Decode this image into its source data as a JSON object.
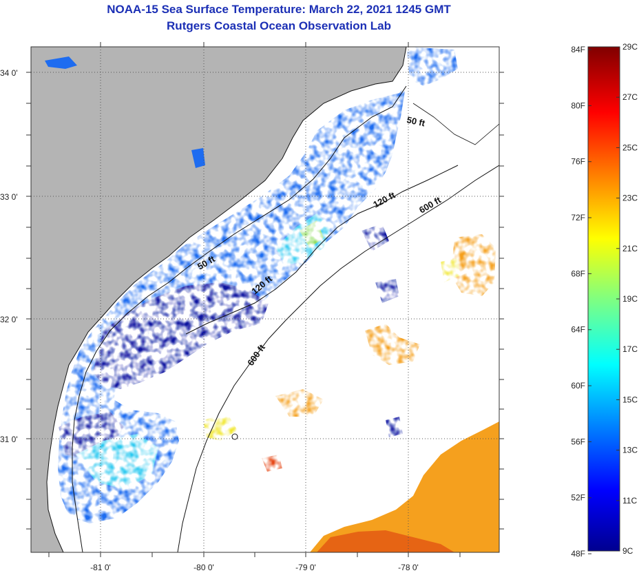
{
  "header": {
    "title": "NOAA-15 Sea Surface Temperature:  March 22, 2021 1245 GMT",
    "subtitle": "Rutgers Coastal Ocean Observation Lab"
  },
  "map": {
    "lon_ticks": [
      "-81 0'",
      "-80 0'",
      "-79 0'",
      "-78 0'"
    ],
    "lat_ticks": [
      "34 0'",
      "33 0'",
      "32 0'",
      "31 0'"
    ],
    "contour_labels": [
      "50 ft",
      "120 ft",
      "600 ft",
      "50 ft",
      "120 ft",
      "600 ft"
    ],
    "colors": {
      "land": "#b4b4b4",
      "ocean_nodata": "#ffffff",
      "cold": "#0a14a0",
      "mid_blue": "#1e6cf0",
      "cyan": "#28c8f0",
      "green": "#8cdc5a",
      "yellow": "#f0e628",
      "orange": "#f5a01e",
      "red": "#e64614"
    }
  },
  "colorbar": {
    "fahrenheit_labels": [
      "84F",
      "80F",
      "76F",
      "72F",
      "68F",
      "64F",
      "60F",
      "56F",
      "52F",
      "48F"
    ],
    "celsius_labels": [
      "29C",
      "27C",
      "25C",
      "23C",
      "21C",
      "19C",
      "17C",
      "15C",
      "13C",
      "11C",
      "9C"
    ],
    "range_c": [
      9,
      29
    ],
    "range_f": [
      48,
      84
    ]
  }
}
